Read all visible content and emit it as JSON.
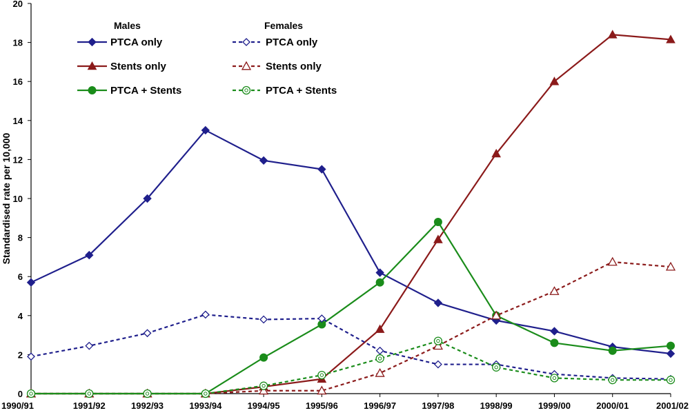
{
  "chart_data": {
    "type": "line",
    "title": "",
    "xlabel": "",
    "ylabel": "Standardised rate per 10,000",
    "ylim": [
      0,
      20
    ],
    "yticks": [
      0,
      2,
      4,
      6,
      8,
      10,
      12,
      14,
      16,
      18,
      20
    ],
    "grid": false,
    "legend_position": "top-left",
    "legend_groups": [
      "Males",
      "Females"
    ],
    "categories": [
      "1990/91",
      "1991/92",
      "1992/93",
      "1993/94",
      "1994/95",
      "1995/96",
      "1996/97",
      "1997/98",
      "1998/99",
      "1999/00",
      "2000/01",
      "2001/02"
    ],
    "series": [
      {
        "name": "PTCA only",
        "group": "Males",
        "color": "#1f1f8c",
        "marker": "diamond",
        "fill": true,
        "dash": false,
        "values": [
          5.7,
          7.1,
          10.0,
          13.5,
          11.95,
          11.5,
          6.2,
          4.65,
          3.75,
          3.2,
          2.4,
          2.05
        ]
      },
      {
        "name": "Stents only",
        "group": "Males",
        "color": "#8b1a1a",
        "marker": "triangle",
        "fill": true,
        "dash": false,
        "values": [
          0,
          0,
          0,
          0,
          0.35,
          0.75,
          3.3,
          7.9,
          12.3,
          16.0,
          18.4,
          18.15
        ]
      },
      {
        "name": "PTCA + Stents",
        "group": "Males",
        "color": "#1a8c1a",
        "marker": "circle",
        "fill": true,
        "dash": false,
        "values": [
          0,
          0,
          0,
          0,
          1.85,
          3.55,
          5.7,
          8.8,
          4.0,
          2.6,
          2.2,
          2.45
        ]
      },
      {
        "name": "PTCA only",
        "group": "Females",
        "color": "#1f1f8c",
        "marker": "diamond",
        "fill": false,
        "dash": true,
        "values": [
          1.9,
          2.45,
          3.1,
          4.05,
          3.8,
          3.85,
          2.2,
          1.5,
          1.5,
          1.0,
          0.8,
          0.75
        ]
      },
      {
        "name": "Stents only",
        "group": "Females",
        "color": "#8b1a1a",
        "marker": "triangle",
        "fill": false,
        "dash": true,
        "values": [
          0,
          0,
          0,
          0,
          0.15,
          0.15,
          1.05,
          2.45,
          4.0,
          5.25,
          6.75,
          6.5
        ]
      },
      {
        "name": "PTCA + Stents",
        "group": "Females",
        "color": "#1a8c1a",
        "marker": "circle",
        "fill": false,
        "dash": true,
        "values": [
          0,
          0,
          0,
          0,
          0.4,
          0.95,
          1.8,
          2.7,
          1.35,
          0.8,
          0.7,
          0.7
        ]
      }
    ]
  }
}
